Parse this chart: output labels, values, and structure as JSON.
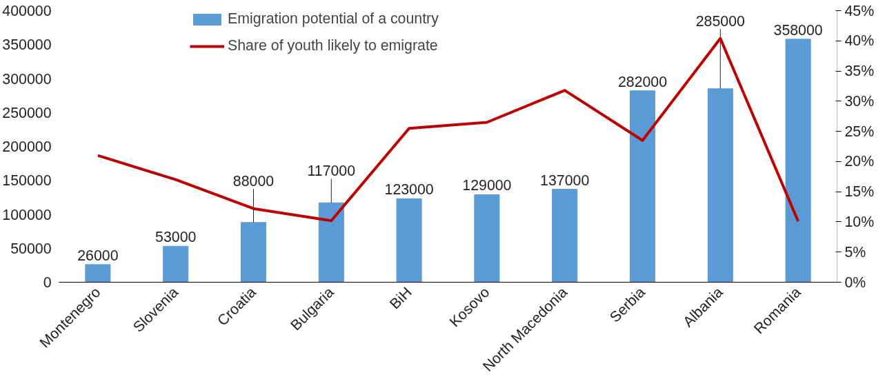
{
  "chart_data": {
    "type": "bar",
    "categories": [
      "Montenegro",
      "Slovenia",
      "Croatia",
      "Bulgaria",
      "BiH",
      "Kosovo",
      "North Macedonia",
      "Serbia",
      "Albania",
      "Romania"
    ],
    "series": [
      {
        "name": "Emigration potential of a country",
        "color": "#5b9bd5",
        "values": [
          26000,
          53000,
          88000,
          117000,
          123000,
          129000,
          137000,
          282000,
          285000,
          358000
        ],
        "value_labels": [
          "26000",
          "53000",
          "88000",
          "117000",
          "123000",
          "129000",
          "137000",
          "282000",
          "285000",
          "358000"
        ]
      },
      {
        "name": "Share of youth likely to emigrate",
        "type": "line",
        "axis": "y2",
        "color": "#c00000",
        "values": [
          21,
          17,
          12.2,
          10.2,
          25.5,
          26.5,
          31.8,
          23.5,
          40.4,
          10.1
        ]
      }
    ],
    "ylim": [
      0,
      400000
    ],
    "yticks": [
      0,
      50000,
      100000,
      150000,
      200000,
      250000,
      300000,
      350000,
      400000
    ],
    "y2lim": [
      0,
      45
    ],
    "y2ticks": [
      {
        "value": 0,
        "label": "0%"
      },
      {
        "value": 5,
        "label": "5%"
      },
      {
        "value": 10,
        "label": "10%"
      },
      {
        "value": 15,
        "label": "15%"
      },
      {
        "value": 20,
        "label": "20%"
      },
      {
        "value": 25,
        "label": "25%"
      },
      {
        "value": 30,
        "label": "30%"
      },
      {
        "value": 35,
        "label": "35%"
      },
      {
        "value": 40,
        "label": "40%"
      },
      {
        "value": 45,
        "label": "45%"
      }
    ],
    "grid": false,
    "legend": "top",
    "marker": "none",
    "line_style": "solid"
  }
}
